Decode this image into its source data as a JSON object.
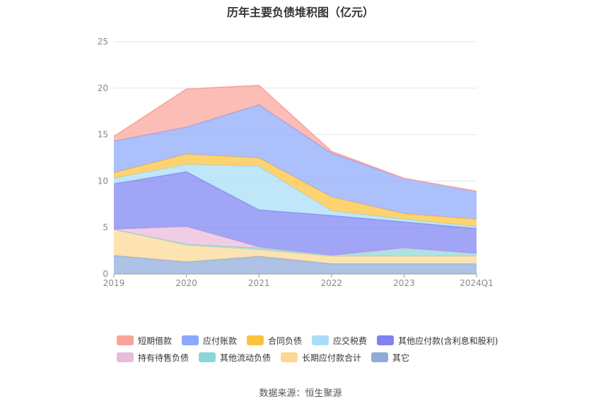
{
  "chart_data": {
    "type": "area",
    "stacked": true,
    "title": "历年主要负债堆积图（亿元）",
    "categories": [
      "2019",
      "2020",
      "2021",
      "2022",
      "2023",
      "2024Q1"
    ],
    "y_ticks": [
      "0",
      "5",
      "10",
      "15",
      "20",
      "25"
    ],
    "ylim": [
      0,
      25
    ],
    "grid": true,
    "legend_position": "bottom",
    "series": [
      {
        "name": "其它",
        "color": "#8eabda",
        "values": [
          2.0,
          1.3,
          1.9,
          1.1,
          1.1,
          1.1
        ]
      },
      {
        "name": "长期应付款合计",
        "color": "#fcd894",
        "values": [
          2.8,
          1.8,
          0.7,
          0.8,
          0.8,
          0.8
        ]
      },
      {
        "name": "其他流动负债",
        "color": "#89d8d6",
        "values": [
          0.0,
          0.1,
          0.2,
          0.1,
          0.9,
          0.3
        ]
      },
      {
        "name": "持有待售负债",
        "color": "#e9bbdb",
        "values": [
          0.0,
          1.9,
          0.1,
          0.0,
          0.0,
          0.0
        ]
      },
      {
        "name": "其他应付款(含利息和股利)",
        "color": "#7d82f2",
        "values": [
          4.9,
          5.9,
          4.0,
          4.3,
          2.8,
          2.7
        ]
      },
      {
        "name": "应交税费",
        "color": "#a8ddf8",
        "values": [
          0.6,
          0.8,
          4.7,
          0.5,
          0.3,
          0.2
        ]
      },
      {
        "name": "合同负债",
        "color": "#fcc23c",
        "values": [
          0.6,
          1.1,
          0.9,
          1.5,
          0.6,
          0.8
        ]
      },
      {
        "name": "应付账款",
        "color": "#8ca7fb",
        "values": [
          3.4,
          2.9,
          5.7,
          4.7,
          3.8,
          3.0
        ]
      },
      {
        "name": "短期借款",
        "color": "#f9a399",
        "values": [
          0.5,
          4.1,
          2.1,
          0.2,
          0.0,
          0.0
        ]
      }
    ],
    "legend_order": [
      "短期借款",
      "应付账款",
      "合同负债",
      "应交税费",
      "其他应付款(含利息和股利)",
      "持有待售负债",
      "其他流动负债",
      "长期应付款合计",
      "其它"
    ]
  },
  "source": "数据来源：恒生聚源"
}
